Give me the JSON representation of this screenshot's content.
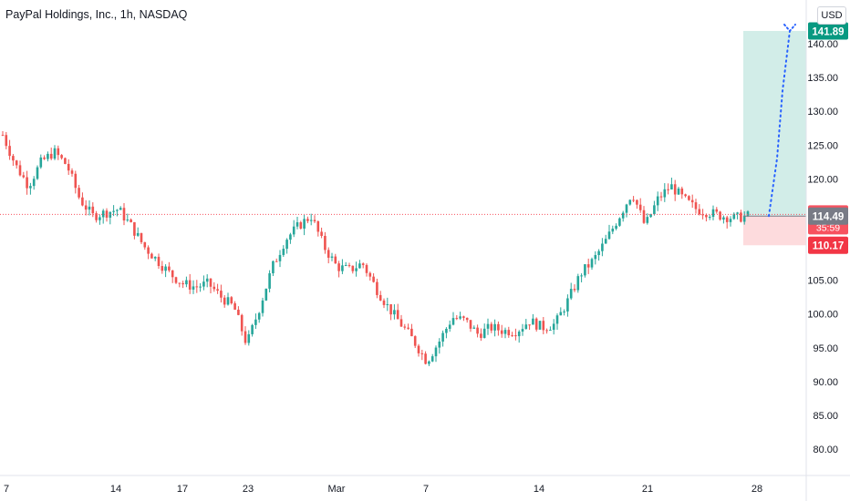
{
  "header": {
    "title": "PayPal Holdings, Inc., 1h, NASDAQ",
    "currency": "USD"
  },
  "chart_data": {
    "type": "candlestick",
    "title": "PayPal Holdings, Inc., 1h, NASDAQ",
    "ylim": [
      77,
      148
    ],
    "y_ticks": [
      80,
      85,
      90,
      95,
      100,
      105,
      110,
      115,
      120,
      125,
      130,
      135,
      140
    ],
    "x_tick_labels": [
      "7",
      "14",
      "17",
      "23",
      "Mar",
      "7",
      "14",
      "21",
      "28"
    ],
    "grid": false,
    "colors": {
      "up": "#26a69a",
      "down": "#ef5350",
      "target": "#089981",
      "stop": "#f23645",
      "neutral": "#787b86",
      "current": "#f7525f"
    },
    "close_path": [
      126.5,
      122,
      119,
      122.5,
      124,
      122,
      117,
      114.5,
      115,
      115.5,
      113,
      110,
      108,
      106,
      104.5,
      104,
      104.5,
      102.5,
      101,
      95.5,
      101,
      107,
      111,
      113,
      114.5,
      110,
      107,
      106.5,
      107.5,
      104,
      101,
      98.5,
      96,
      93,
      96,
      99.5,
      99,
      97,
      98,
      97.5,
      97.5,
      99,
      98,
      98.5,
      102,
      106,
      108,
      111,
      114.5,
      118,
      113,
      117,
      119,
      117,
      115.5,
      115,
      114.5,
      114.2,
      114.5
    ],
    "current_price": {
      "value": 114.74,
      "countdown": "35:59"
    },
    "price_labels": {
      "target": 141.89,
      "entry": 114.49,
      "stop": 110.17
    },
    "position": {
      "entry": 114.49,
      "target": 141.89,
      "stop": 110.17
    },
    "projection": [
      114.49,
      123,
      133,
      141.89
    ]
  }
}
